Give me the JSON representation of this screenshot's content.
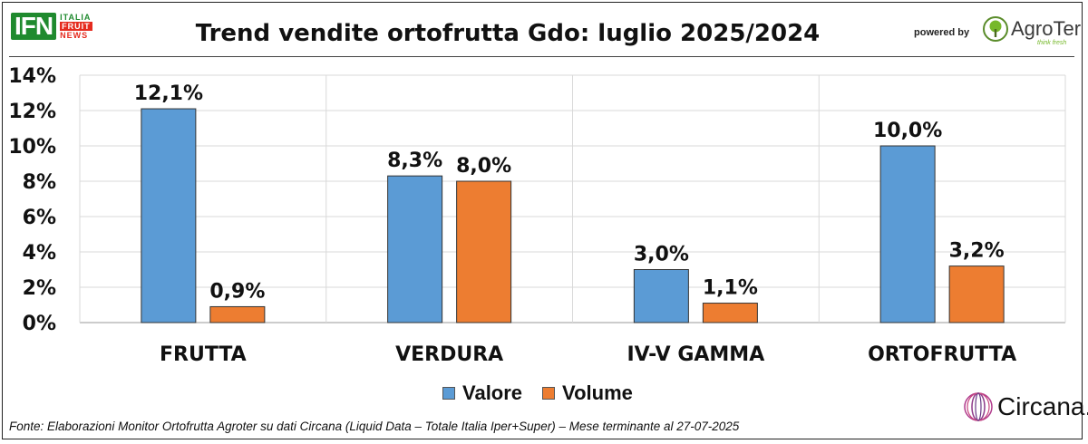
{
  "header": {
    "title": "Trend vendite ortofrutta Gdo: luglio 2025/2024",
    "powered_by": "powered by",
    "ifn_logo": {
      "main": "IFN",
      "line1": "ITALIA",
      "line2": "FRUIT",
      "line3": "NEWS"
    },
    "agroter_logo": {
      "name": "AgroTer",
      "tagline": "think fresh"
    }
  },
  "chart_data": {
    "type": "bar",
    "title": "Trend vendite ortofrutta Gdo: luglio 2025/2024",
    "categories": [
      "FRUTTA",
      "VERDURA",
      "IV-V GAMMA",
      "ORTOFRUTTA"
    ],
    "series": [
      {
        "name": "Valore",
        "values": [
          12.1,
          8.3,
          3.0,
          10.0
        ],
        "labels": [
          "12,1%",
          "8,3%",
          "3,0%",
          "10,0%"
        ],
        "color": "#5b9bd5"
      },
      {
        "name": "Volume",
        "values": [
          0.9,
          8.0,
          1.1,
          3.2
        ],
        "labels": [
          "0,9%",
          "8,0%",
          "1,1%",
          "3,2%"
        ],
        "color": "#ed7d31"
      }
    ],
    "ylim": [
      0,
      14
    ],
    "yticks": [
      0,
      2,
      4,
      6,
      8,
      10,
      12,
      14
    ],
    "ytick_labels": [
      "0%",
      "2%",
      "4%",
      "6%",
      "8%",
      "10%",
      "12%",
      "14%"
    ],
    "xlabel": "",
    "ylabel": "",
    "grid": true,
    "legend": "bottom-center"
  },
  "footer": {
    "source": "Fonte: Elaborazioni Monitor Ortofrutta Agroter su dati Circana (Liquid Data – Totale Italia Iper+Super) – Mese terminante al 27-07-2025",
    "circana_logo": {
      "name": "Circana."
    }
  }
}
